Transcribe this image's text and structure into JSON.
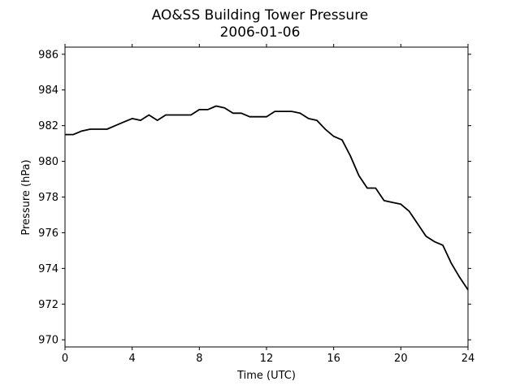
{
  "chart_data": {
    "type": "line",
    "title": "AO&SS Building Tower Pressure",
    "subtitle": "2006-01-06",
    "xlabel": "Time (UTC)",
    "ylabel": "Pressure (hPa)",
    "xlim": [
      0,
      24
    ],
    "ylim": [
      969.6,
      986.4
    ],
    "xticks": [
      0,
      4,
      8,
      12,
      16,
      20,
      24
    ],
    "yticks": [
      970,
      972,
      974,
      976,
      978,
      980,
      982,
      984,
      986
    ],
    "grid": false,
    "line_color": "#000000",
    "series": [
      {
        "x": [
          0,
          0.5,
          1,
          1.5,
          2,
          2.5,
          3,
          3.5,
          4,
          4.5,
          5,
          5.5,
          6,
          6.5,
          7,
          7.5,
          8,
          8.5,
          9,
          9.5,
          10,
          10.5,
          11,
          11.5,
          12,
          12.5,
          13,
          13.5,
          14,
          14.5,
          15,
          15.5,
          16,
          16.5,
          17,
          17.5,
          18,
          18.5,
          19,
          19.5,
          20,
          20.5,
          21,
          21.5,
          22,
          22.5,
          23,
          23.5,
          24
        ],
        "y": [
          981.5,
          981.5,
          981.7,
          981.8,
          981.8,
          981.8,
          982.0,
          982.2,
          982.4,
          982.3,
          982.6,
          982.3,
          982.6,
          982.6,
          982.6,
          982.6,
          982.9,
          982.9,
          983.1,
          983.0,
          982.7,
          982.7,
          982.5,
          982.5,
          982.5,
          982.8,
          982.8,
          982.8,
          982.7,
          982.4,
          982.3,
          981.8,
          981.4,
          981.2,
          980.3,
          979.2,
          978.5,
          978.5,
          977.8,
          977.7,
          977.6,
          977.2,
          976.5,
          975.8,
          975.5,
          975.3,
          974.3,
          973.5,
          972.8
        ]
      }
    ]
  }
}
